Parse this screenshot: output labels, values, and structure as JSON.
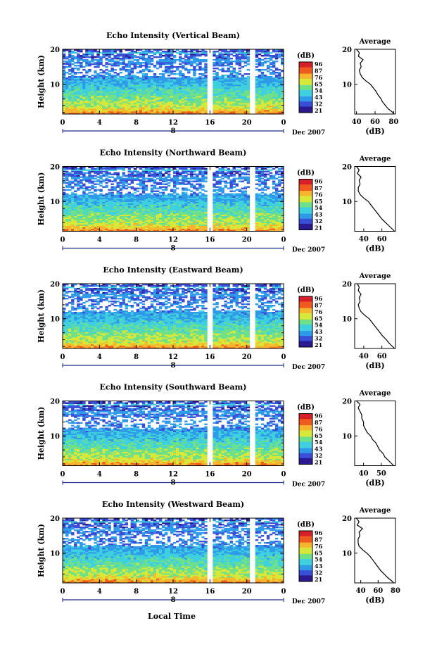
{
  "figure": {
    "xlabel": "Local Time",
    "date_label": "Dec 2007",
    "colorbar_unit": "(dB)",
    "colorbar_ticks": [
      "96",
      "87",
      "76",
      "65",
      "54",
      "43",
      "32",
      "21"
    ],
    "colormap": [
      "#2b1a8f",
      "#3a4fd8",
      "#2f9be8",
      "#3fd0e0",
      "#6ee08a",
      "#d8e838",
      "#f7b52e",
      "#f05a1e",
      "#d8202a"
    ]
  },
  "chart_data": [
    {
      "type": "heatmap",
      "title": "Echo Intensity (Vertical Beam)",
      "ylabel": "Height (km)",
      "x_ticks": [
        "0",
        "4",
        "8",
        "12",
        "16",
        "20",
        "0"
      ],
      "y_ticks": [
        "20",
        "10"
      ],
      "x_range": [
        0,
        24
      ],
      "y_range_km": [
        1.5,
        20
      ],
      "z_range_db": [
        21,
        96
      ],
      "data_gaps_hours": [
        [
          15.7,
          16.3
        ],
        [
          20.4,
          20.8
        ]
      ],
      "sub_label": "8",
      "average_profile": {
        "title": "Average",
        "xlabel": "(dB)",
        "x_ticks": [
          "40",
          "60",
          "80"
        ],
        "x_range": [
          38,
          82
        ],
        "y_ticks": [
          "20",
          "10"
        ],
        "height_km": [
          1.5,
          2,
          3,
          4,
          5,
          6,
          7,
          8,
          9,
          10,
          11,
          12,
          13,
          14,
          15,
          16,
          17,
          18,
          19,
          20
        ],
        "db": [
          80,
          79,
          74,
          71,
          68,
          66,
          63,
          61,
          58,
          55,
          50,
          46,
          44,
          43,
          45,
          44,
          47,
          42,
          43,
          40
        ]
      }
    },
    {
      "type": "heatmap",
      "title": "Echo Intensity (Northward Beam)",
      "ylabel": "Height (km)",
      "x_ticks": [
        "0",
        "4",
        "8",
        "12",
        "16",
        "20",
        "0"
      ],
      "y_ticks": [
        "20",
        "10"
      ],
      "x_range": [
        0,
        24
      ],
      "y_range_km": [
        1.5,
        20
      ],
      "z_range_db": [
        21,
        96
      ],
      "data_gaps_hours": [
        [
          15.7,
          16.3
        ],
        [
          20.4,
          20.8
        ]
      ],
      "sub_label": "8",
      "average_profile": {
        "title": "Average",
        "xlabel": "(dB)",
        "x_ticks": [
          "40",
          "60"
        ],
        "x_range": [
          30,
          75
        ],
        "y_ticks": [
          "20",
          "10"
        ],
        "height_km": [
          1.5,
          2,
          3,
          4,
          5,
          6,
          7,
          8,
          9,
          10,
          11,
          12,
          13,
          14,
          15,
          16,
          17,
          18,
          19,
          20
        ],
        "db": [
          74,
          72,
          68,
          64,
          60,
          57,
          54,
          51,
          48,
          45,
          40,
          36,
          34,
          34,
          36,
          35,
          37,
          33,
          35,
          32
        ]
      }
    },
    {
      "type": "heatmap",
      "title": "Echo Intensity (Eastward Beam)",
      "ylabel": "Height (km)",
      "x_ticks": [
        "0",
        "4",
        "8",
        "12",
        "16",
        "20",
        "0"
      ],
      "y_ticks": [
        "20",
        "10"
      ],
      "x_range": [
        0,
        24
      ],
      "y_range_km": [
        1.5,
        20
      ],
      "z_range_db": [
        21,
        96
      ],
      "data_gaps_hours": [
        [
          15.7,
          16.3
        ],
        [
          20.4,
          20.8
        ]
      ],
      "sub_label": "8",
      "average_profile": {
        "title": "Average",
        "xlabel": "(dB)",
        "x_ticks": [
          "40",
          "60"
        ],
        "x_range": [
          30,
          75
        ],
        "y_ticks": [
          "20",
          "10"
        ],
        "height_km": [
          1.5,
          2,
          3,
          4,
          5,
          6,
          7,
          8,
          9,
          10,
          11,
          12,
          13,
          14,
          15,
          16,
          17,
          18,
          19,
          20
        ],
        "db": [
          74,
          72,
          68,
          65,
          61,
          58,
          55,
          52,
          49,
          46,
          41,
          37,
          35,
          34,
          36,
          35,
          37,
          34,
          35,
          33
        ]
      }
    },
    {
      "type": "heatmap",
      "title": "Echo Intensity (Southward Beam)",
      "ylabel": "Height (km)",
      "x_ticks": [
        "0",
        "4",
        "8",
        "12",
        "16",
        "20",
        "0"
      ],
      "y_ticks": [
        "20",
        "10"
      ],
      "x_range": [
        0,
        24
      ],
      "y_range_km": [
        1.5,
        20
      ],
      "z_range_db": [
        21,
        96
      ],
      "data_gaps_hours": [
        [
          15.7,
          16.3
        ],
        [
          20.4,
          20.8
        ]
      ],
      "sub_label": "8",
      "average_profile": {
        "title": "Average",
        "xlabel": "(dB)",
        "x_ticks": [
          "40",
          "50"
        ],
        "x_range": [
          35,
          58
        ],
        "y_ticks": [
          "20",
          "10"
        ],
        "height_km": [
          1.5,
          2,
          3,
          4,
          5,
          6,
          7,
          8,
          9,
          10,
          11,
          12,
          13,
          14,
          15,
          16,
          17,
          18,
          19,
          20
        ],
        "db": [
          57,
          56,
          54,
          52,
          51,
          49,
          48,
          47,
          45,
          44,
          42,
          41,
          40,
          40,
          39,
          39,
          38,
          37,
          38,
          36
        ]
      }
    },
    {
      "type": "heatmap",
      "title": "Echo Intensity (Westward Beam)",
      "ylabel": "Height (km)",
      "x_ticks": [
        "0",
        "4",
        "8",
        "12",
        "16",
        "20",
        "0"
      ],
      "y_ticks": [
        "20",
        "10"
      ],
      "x_range": [
        0,
        24
      ],
      "y_range_km": [
        1.5,
        20
      ],
      "z_range_db": [
        21,
        96
      ],
      "data_gaps_hours": [
        [
          15.7,
          16.3
        ],
        [
          20.4,
          20.8
        ]
      ],
      "sub_label": "8",
      "average_profile": {
        "title": "Average",
        "xlabel": "(dB)",
        "x_ticks": [
          "40",
          "60",
          "80"
        ],
        "x_range": [
          33,
          80
        ],
        "y_ticks": [
          "20",
          "10"
        ],
        "height_km": [
          1.5,
          2,
          3,
          4,
          5,
          6,
          7,
          8,
          9,
          10,
          11,
          12,
          13,
          14,
          15,
          16,
          17,
          18,
          19,
          20
        ],
        "db": [
          78,
          76,
          71,
          67,
          63,
          60,
          57,
          54,
          51,
          47,
          42,
          38,
          37,
          37,
          39,
          38,
          42,
          36,
          38,
          35
        ]
      }
    }
  ]
}
